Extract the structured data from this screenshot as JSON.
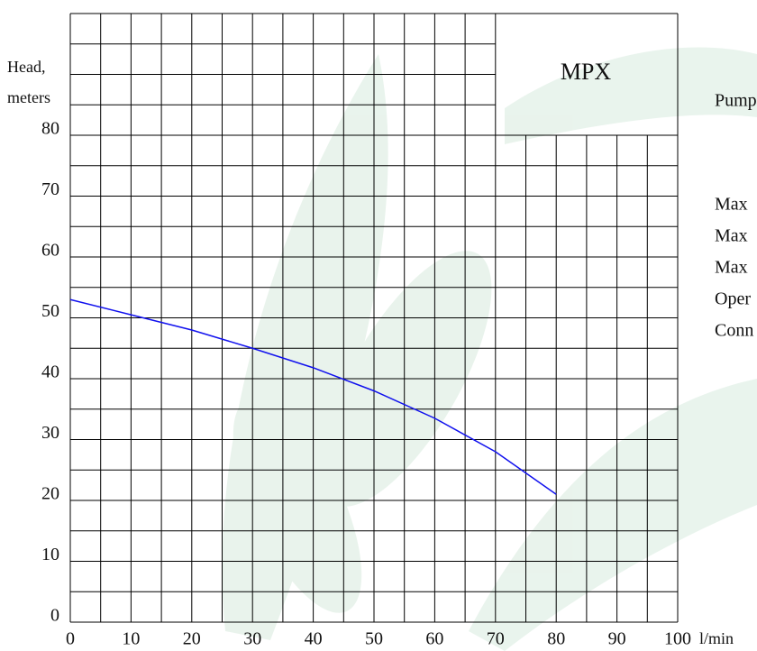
{
  "chart_data": {
    "type": "line",
    "title": "MPX",
    "ylabel": [
      "Head,",
      "meters"
    ],
    "xlabel": "l/min",
    "x": [
      0,
      10,
      20,
      30,
      40,
      50,
      60,
      70,
      80
    ],
    "series": [
      {
        "name": "MPX",
        "color": "#1010ee",
        "values": [
          53,
          50.5,
          48,
          45,
          41.8,
          38,
          33.5,
          28,
          21
        ]
      }
    ],
    "xlim": [
      0,
      100
    ],
    "ylim": [
      0,
      100
    ],
    "xticks": [
      0,
      10,
      20,
      30,
      40,
      50,
      60,
      70,
      80,
      90,
      100
    ],
    "yticks": [
      0,
      10,
      20,
      30,
      40,
      50,
      60,
      70,
      80
    ],
    "grid_lines": {
      "x": [
        0,
        5,
        10,
        15,
        20,
        25,
        30,
        35,
        40,
        45,
        50,
        55,
        60,
        65,
        70,
        75,
        80,
        85,
        90,
        95,
        100
      ],
      "y": [
        0,
        5,
        10,
        15,
        20,
        25,
        30,
        35,
        40,
        45,
        50,
        55,
        60,
        65,
        70,
        75,
        80,
        85,
        90,
        95,
        100
      ]
    },
    "title_box": {
      "xlim": [
        70,
        100
      ],
      "ylim": [
        80,
        100
      ]
    },
    "side_text": [
      "Pump",
      "Max",
      "Max",
      "Max",
      "Oper",
      "Conn"
    ]
  }
}
